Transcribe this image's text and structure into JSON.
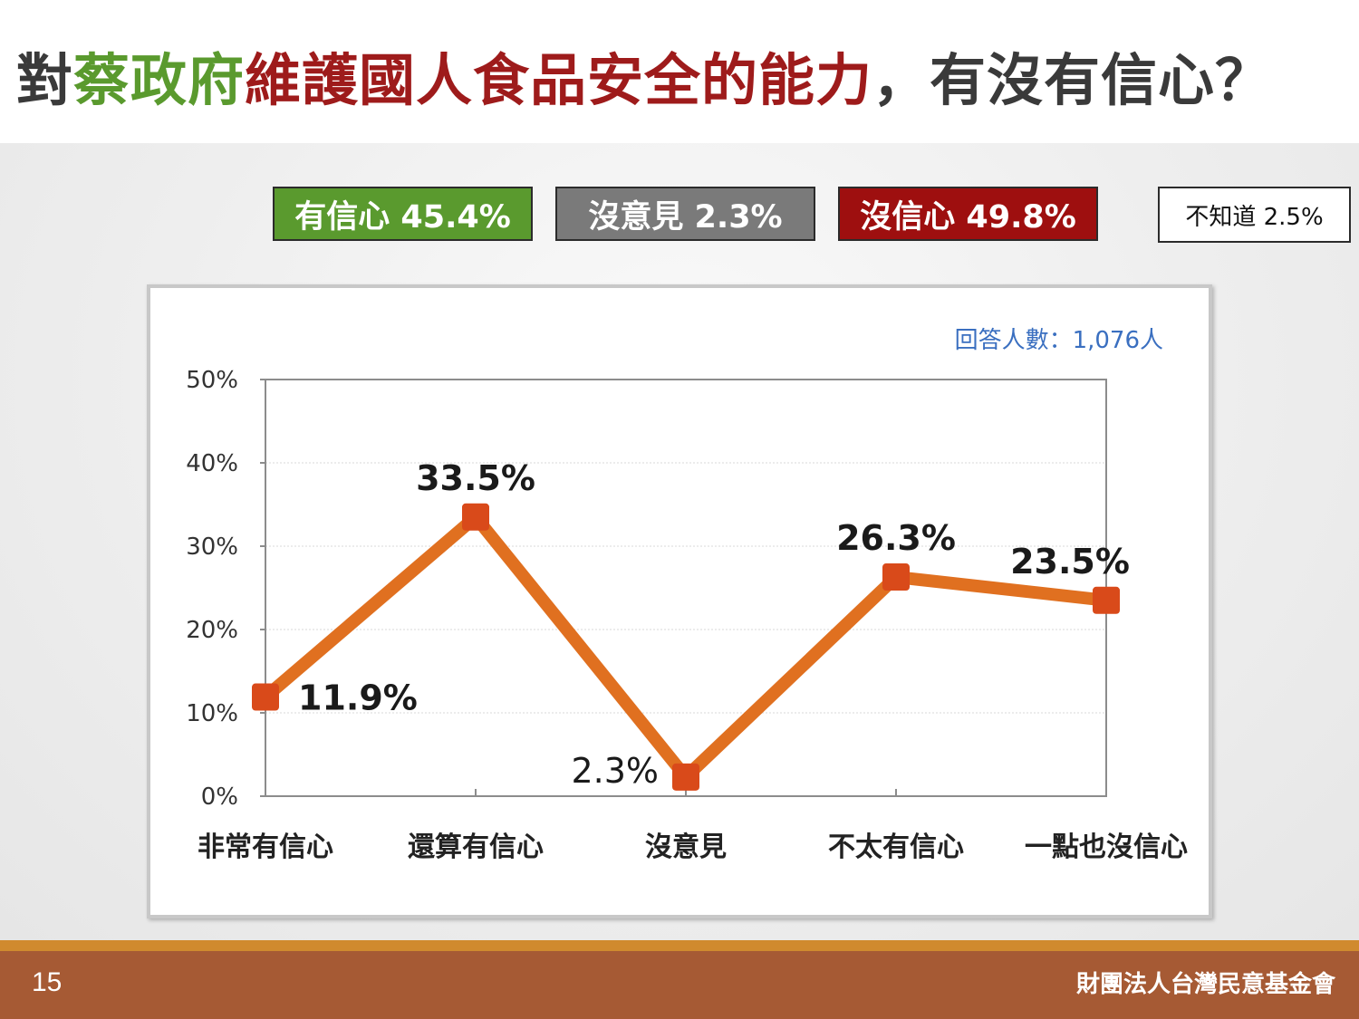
{
  "slide": {
    "title_parts": [
      "對",
      "蔡政府",
      "維護國人食品安全的能力",
      "，有沒有信心？"
    ],
    "page_number": "15",
    "organization": "財團法人台灣民意基金會"
  },
  "summary": {
    "confident": "有信心 45.4%",
    "no_opinion": "沒意見 2.3%",
    "not_confident": "沒信心 49.8%",
    "dont_know": "不知道 2.5%"
  },
  "colors": {
    "confident": "#5a9a2e",
    "no_opinion": "#7a7a7a",
    "not_confident": "#9e0f0f",
    "line": "#e07020",
    "marker": "#d94a1a"
  },
  "chart_data": {
    "type": "line",
    "annotation": "回答人數：1,076人",
    "categories": [
      "非常有信心",
      "還算有信心",
      "沒意見",
      "不太有信心",
      "一點也沒信心"
    ],
    "values": [
      11.9,
      33.5,
      2.3,
      26.3,
      23.5
    ],
    "data_labels": [
      "11.9%",
      "33.5%",
      "2.3%",
      "26.3%",
      "23.5%"
    ],
    "y_ticks": [
      "0%",
      "10%",
      "20%",
      "30%",
      "40%",
      "50%"
    ],
    "ylim": [
      0,
      50
    ],
    "grid": true,
    "title": "",
    "xlabel": "",
    "ylabel": ""
  }
}
